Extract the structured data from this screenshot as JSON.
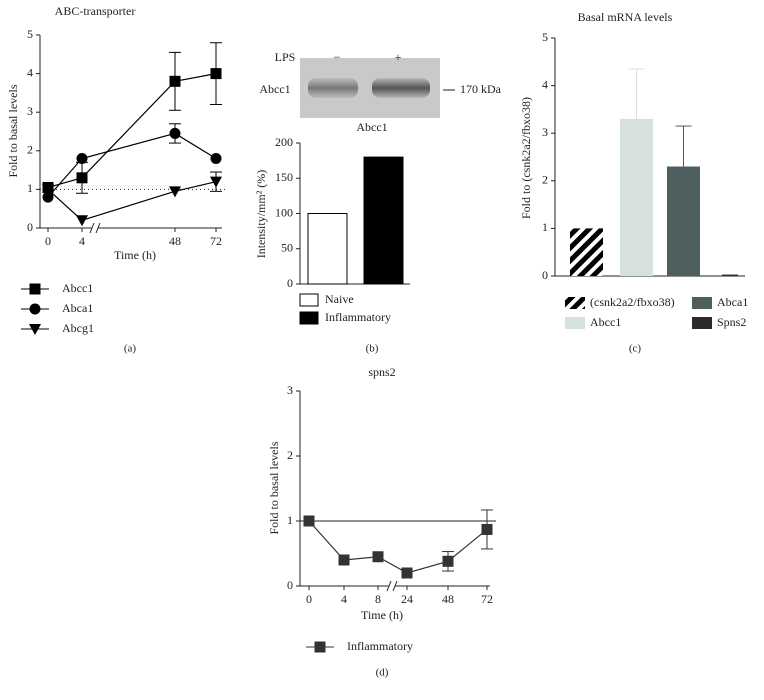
{
  "chart_data": [
    {
      "type": "line",
      "panel_label": "(a)",
      "title": "ABC-transporter",
      "xlabel": "Time (h)",
      "ylabel": "Fold to basal levels",
      "categories": [
        "0",
        "4",
        "48",
        "72"
      ],
      "ylim": [
        0,
        5
      ],
      "yticks": [
        0,
        1,
        2,
        3,
        4,
        5
      ],
      "refline": 1,
      "refline_style": "dotted",
      "series": [
        {
          "name": "Abcc1",
          "marker": "square",
          "color": "#000000",
          "values": [
            1.05,
            1.3,
            3.8,
            4.0
          ],
          "errors": [
            null,
            0.4,
            0.75,
            0.8
          ]
        },
        {
          "name": "Abca1",
          "marker": "circle",
          "color": "#000000",
          "values": [
            0.8,
            1.8,
            2.45,
            1.8
          ],
          "errors": [
            null,
            null,
            0.25,
            null
          ]
        },
        {
          "name": "Abcg1",
          "marker": "triangle",
          "color": "#000000",
          "values": [
            1.0,
            0.2,
            0.95,
            1.2
          ],
          "errors": [
            null,
            null,
            null,
            0.25
          ]
        }
      ]
    },
    {
      "type": "bar",
      "panel_label": "(b)",
      "title": "Abcc1",
      "ylabel": "Intensity/mm² (%)",
      "blot": {
        "lps_label": "LPS",
        "lanes": [
          "−",
          "+"
        ],
        "band_label": "Abcc1",
        "size_label": "170 kDa"
      },
      "ylim": [
        0,
        200
      ],
      "yticks": [
        0,
        50,
        100,
        150,
        200
      ],
      "series": [
        {
          "name": "Naive",
          "color": "#ffffff",
          "values": [
            100
          ]
        },
        {
          "name": "Inflammatory",
          "color": "#000000",
          "values": [
            180
          ]
        }
      ]
    },
    {
      "type": "bar",
      "panel_label": "(c)",
      "title": "Basal mRNA levels",
      "ylabel": "Fold to (csnk2a2/fbxo38)",
      "ylim": [
        0,
        5
      ],
      "yticks": [
        0,
        1,
        2,
        3,
        4,
        5
      ],
      "series": [
        {
          "name": "(csnk2a2/fbxo38)",
          "color": "hatch",
          "values": [
            1.0
          ],
          "errors": [
            null
          ]
        },
        {
          "name": "Abcc1",
          "color": "#d6e0dc",
          "values": [
            3.3
          ],
          "errors": [
            1.05
          ]
        },
        {
          "name": "Abca1",
          "color": "#4f5e5f",
          "values": [
            2.3
          ],
          "errors": [
            0.85
          ]
        },
        {
          "name": "Spns2",
          "color": "#2b2b2b",
          "values": [
            0.03
          ],
          "errors": [
            null
          ]
        }
      ]
    },
    {
      "type": "line",
      "panel_label": "(d)",
      "title": "spns2",
      "xlabel": "Time (h)",
      "ylabel": "Fold to basal levels",
      "categories": [
        "0",
        "4",
        "8",
        "24",
        "48",
        "72"
      ],
      "ylim": [
        0,
        3
      ],
      "yticks": [
        0,
        1,
        2,
        3
      ],
      "refline": 1,
      "refline_style": "solid",
      "series": [
        {
          "name": "Inflammatory",
          "marker": "square",
          "color": "#333333",
          "values": [
            1.0,
            0.4,
            0.45,
            0.2,
            0.38,
            0.87
          ],
          "errors": [
            null,
            null,
            null,
            null,
            0.15,
            0.3
          ]
        }
      ]
    }
  ]
}
